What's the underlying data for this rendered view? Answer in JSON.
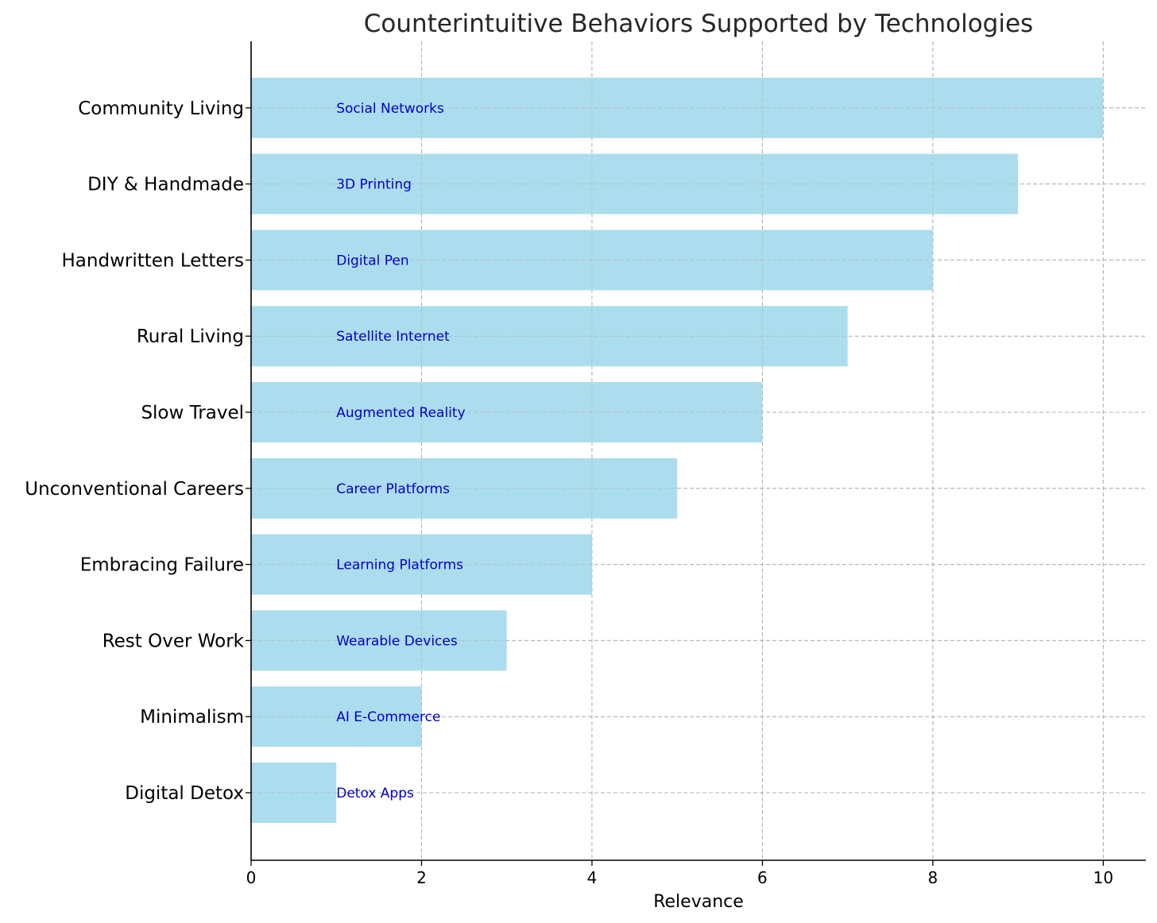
{
  "chart_data": {
    "type": "bar",
    "orientation": "horizontal",
    "title": "Counterintuitive Behaviors Supported by Technologies",
    "xlabel": "Relevance",
    "ylabel": "",
    "xlim": [
      0,
      10.5
    ],
    "xticks": [
      0,
      2,
      4,
      6,
      8,
      10
    ],
    "grid": true,
    "bar_color": "#a8dbed",
    "label_color": "#0000cc",
    "categories": [
      "Digital Detox",
      "Minimalism",
      "Rest Over Work",
      "Embracing Failure",
      "Unconventional Careers",
      "Slow Travel",
      "Rural Living",
      "Handwritten Letters",
      "DIY & Handmade",
      "Community Living"
    ],
    "values": [
      1,
      2,
      3,
      4,
      5,
      6,
      7,
      8,
      9,
      10
    ],
    "bar_labels": [
      "Detox Apps",
      "AI E-Commerce",
      "Wearable Devices",
      "Learning Platforms",
      "Career Platforms",
      "Augmented Reality",
      "Satellite Internet",
      "Digital Pen",
      "3D Printing",
      "Social Networks"
    ]
  }
}
